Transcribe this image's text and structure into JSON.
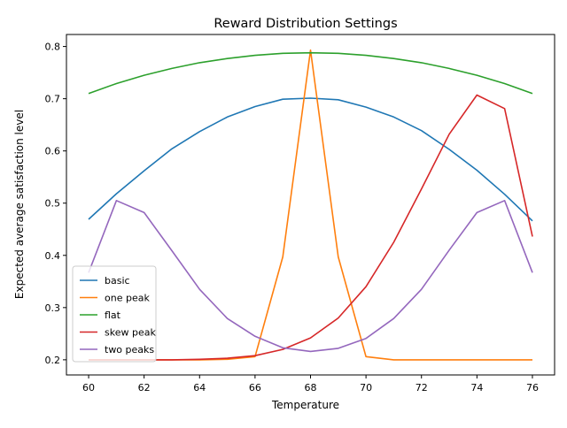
{
  "chart_data": {
    "type": "line",
    "title": "Reward Distribution Settings",
    "xlabel": "Temperature",
    "ylabel": "Expected average satisfaction level",
    "x": [
      60,
      61,
      62,
      63,
      64,
      65,
      66,
      67,
      68,
      69,
      70,
      71,
      72,
      73,
      74,
      75,
      76
    ],
    "xlim": [
      59.2,
      76.8
    ],
    "ylim": [
      0.171,
      0.823
    ],
    "xticks": [
      60,
      62,
      64,
      66,
      68,
      70,
      72,
      74,
      76
    ],
    "yticks": [
      0.2,
      0.3,
      0.4,
      0.5,
      0.6,
      0.7,
      0.8
    ],
    "grid": false,
    "legend_position": "lower-left",
    "series": [
      {
        "name": "basic",
        "color": "#1f77b4",
        "values": [
          0.469,
          0.518,
          0.562,
          0.604,
          0.637,
          0.665,
          0.685,
          0.699,
          0.701,
          0.698,
          0.684,
          0.665,
          0.639,
          0.603,
          0.563,
          0.517,
          0.466
        ]
      },
      {
        "name": "one peak",
        "color": "#ff7f0e",
        "values": [
          0.2,
          0.2,
          0.2,
          0.2,
          0.2,
          0.201,
          0.206,
          0.397,
          0.793,
          0.397,
          0.206,
          0.2,
          0.2,
          0.2,
          0.2,
          0.2,
          0.2
        ]
      },
      {
        "name": "flat",
        "color": "#2ca02c",
        "values": [
          0.71,
          0.729,
          0.745,
          0.758,
          0.769,
          0.777,
          0.783,
          0.787,
          0.788,
          0.787,
          0.783,
          0.777,
          0.769,
          0.758,
          0.745,
          0.729,
          0.71
        ]
      },
      {
        "name": "skew peak",
        "color": "#d62728",
        "values": [
          0.2,
          0.2,
          0.2,
          0.2,
          0.201,
          0.203,
          0.208,
          0.22,
          0.242,
          0.28,
          0.34,
          0.425,
          0.527,
          0.632,
          0.707,
          0.681,
          0.436
        ]
      },
      {
        "name": "two peaks",
        "color": "#9467bd",
        "values": [
          0.367,
          0.505,
          0.482,
          0.409,
          0.335,
          0.279,
          0.245,
          0.223,
          0.216,
          0.222,
          0.241,
          0.279,
          0.335,
          0.41,
          0.482,
          0.505,
          0.367
        ]
      }
    ]
  }
}
